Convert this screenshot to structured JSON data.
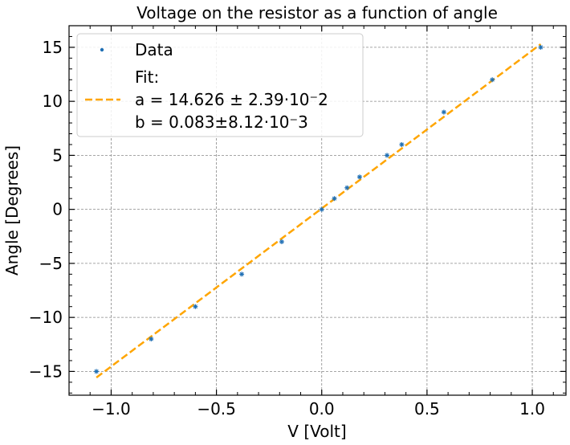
{
  "chart_data": {
    "type": "scatter",
    "title": "Voltage on the resistor as a function of angle",
    "xlabel": "V [Volt]",
    "ylabel": "Angle [Degrees]",
    "xlim": [
      -1.2,
      1.16
    ],
    "ylim": [
      -17.2,
      17.0
    ],
    "xticks": [
      -1.0,
      -0.5,
      0.0,
      0.5,
      1.0
    ],
    "xtick_labels": [
      "−1.0",
      "−0.5",
      "0.0",
      "0.5",
      "1.0"
    ],
    "yticks": [
      -15,
      -10,
      -5,
      0,
      5,
      10,
      15
    ],
    "ytick_labels": [
      "−15",
      "−10",
      "−5",
      "0",
      "5",
      "10",
      "15"
    ],
    "grid": true,
    "legend_position": "top-left",
    "series": [
      {
        "name": "Data",
        "kind": "scatter",
        "color": "#1f6fb4",
        "x": [
          -1.07,
          -0.81,
          -0.6,
          -0.38,
          -0.19,
          0.0,
          0.06,
          0.12,
          0.18,
          0.31,
          0.38,
          0.58,
          0.81,
          1.04
        ],
        "y": [
          -15,
          -12,
          -9,
          -6,
          -3,
          0,
          1,
          2,
          3,
          5,
          6,
          9,
          12,
          15
        ]
      },
      {
        "name": "Fit:",
        "kind": "line",
        "style": "dashed",
        "color": "#ffa500",
        "x": [
          -1.07,
          1.04
        ],
        "y": [
          -15.567,
          15.294
        ]
      }
    ],
    "legend_extra_lines": [
      "a = 14.626 ± 2.39·10⁻2",
      "b = 0.083±8.12·10⁻3"
    ]
  }
}
